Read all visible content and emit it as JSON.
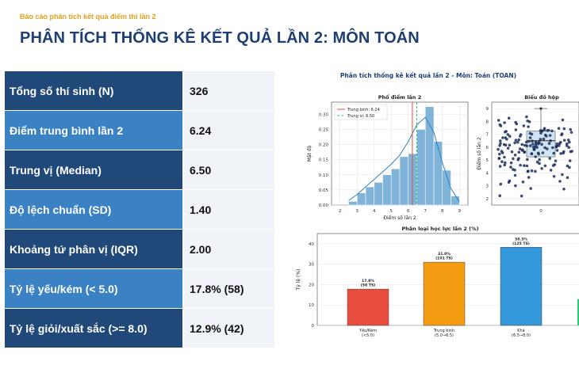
{
  "header": {
    "subtitle": "Báo cáo phân tích kết quả điểm thi lần 2",
    "title": "PHÂN TÍCH THỐNG KÊ KẾT QUẢ LẦN 2: MÔN TOÁN"
  },
  "stats": [
    {
      "label": "Tổng số thí sinh (N)",
      "value": "326",
      "shade": "dark"
    },
    {
      "label": "Điểm trung bình lần 2",
      "value": "6.24",
      "shade": "light"
    },
    {
      "label": "Trung vị (Median)",
      "value": "6.50",
      "shade": "dark"
    },
    {
      "label": "Độ lệch chuẩn (SD)",
      "value": "1.40",
      "shade": "light"
    },
    {
      "label": "Khoảng tứ phân vị (IQR)",
      "value": "2.00",
      "shade": "dark"
    },
    {
      "label": "Tỷ lệ yếu/kém (< 5.0)",
      "value": "17.8% (58)",
      "shade": "light"
    },
    {
      "label": "Tỷ lệ giỏi/xuất sắc (>= 8.0)",
      "value": "12.9% (42)",
      "shade": "dark"
    }
  ],
  "figure": {
    "title": "Phân tích thống kê kết quả lần 2 - Môn: Toán (TOAN)"
  },
  "chart_data": [
    {
      "type": "bar",
      "title": "Phổ điểm lần 2",
      "xlabel": "Điểm số lần 2",
      "ylabel": "Mật độ",
      "bin_width": 0.5,
      "x_bin_starts": [
        2.5,
        3.0,
        3.5,
        4.0,
        4.5,
        5.0,
        5.5,
        6.0,
        6.5,
        7.0,
        7.5,
        8.0,
        8.5
      ],
      "values": [
        0.012,
        0.04,
        0.06,
        0.075,
        0.1,
        0.12,
        0.16,
        0.17,
        0.25,
        0.325,
        0.21,
        0.115,
        0.03
      ],
      "density_curve": {
        "x": [
          2.5,
          3.0,
          3.5,
          4.0,
          4.5,
          5.0,
          5.5,
          6.0,
          6.5,
          7.0,
          7.5,
          8.0,
          8.5,
          9.0
        ],
        "y": [
          0.015,
          0.035,
          0.06,
          0.085,
          0.11,
          0.135,
          0.165,
          0.21,
          0.265,
          0.29,
          0.24,
          0.14,
          0.055,
          0.01
        ]
      },
      "xlim": [
        1.5,
        9.5
      ],
      "ylim": [
        0,
        0.34
      ],
      "x_ticks": [
        "2",
        "3",
        "4",
        "5",
        "6",
        "7",
        "8",
        "9"
      ],
      "y_ticks": [
        "0.00",
        "0.05",
        "0.10",
        "0.15",
        "0.20",
        "0.25",
        "0.30"
      ],
      "mean_line": {
        "label": "Trung bình: 6.24",
        "value": 6.24,
        "color": "#e74c3c"
      },
      "median_line": {
        "label": "Trung vị: 6.50",
        "value": 6.5,
        "color": "#2ecc71"
      },
      "bar_color": "#7fb3d8",
      "grid": true,
      "legend": "top-left"
    },
    {
      "type": "box",
      "title": "Biểu đồ hộp",
      "ylabel": "Điểm số lần 2",
      "ylim": [
        1.5,
        9.5
      ],
      "y_ticks": [
        "2",
        "3",
        "4",
        "5",
        "6",
        "7",
        "8",
        "9"
      ],
      "q1": 5.25,
      "median": 6.5,
      "q3": 7.25,
      "whisker_high": 9.0,
      "x_tick": "0"
    },
    {
      "type": "bar",
      "title": "Phân loại học lực lần 2 (%)",
      "ylabel": "Tỷ lệ (%)",
      "categories": [
        "Yếu/Kém\n(<5.0)",
        "Trung bình\n(5.0→6.5)",
        "Khá\n(6.5→8.0)"
      ],
      "values": [
        17.8,
        31.0,
        38.3
      ],
      "data_labels": [
        "17.8%\n(58 TS)",
        "31.0%\n(101 TS)",
        "38.3%\n(125 TS)"
      ],
      "colors": [
        "#e74c3c",
        "#f39c12",
        "#3498db"
      ],
      "ylim": [
        0,
        45
      ],
      "y_ticks": [
        "0",
        "10",
        "20",
        "30",
        "40"
      ],
      "grid": true
    }
  ]
}
